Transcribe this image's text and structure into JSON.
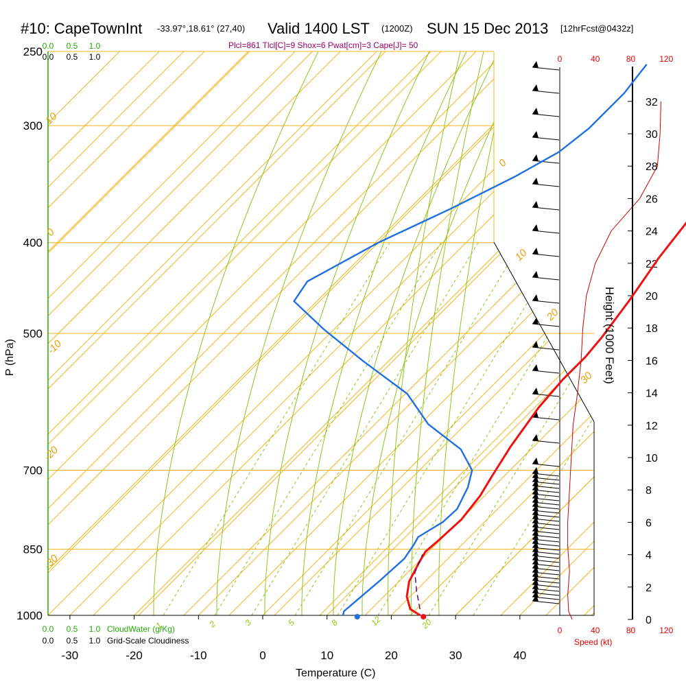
{
  "header": {
    "station": "#10: CapeTownInt",
    "coords": "-33.97°,18.61° (27,40)",
    "valid": "Valid 1400 LST",
    "zulu": "(1200Z)",
    "date": "SUN 15 Dec 2013",
    "forecast": "[12hrFcst@0432z]",
    "params": "Plcl=861 Tlcl[C]=9 Shox=6 Pwat[cm]=3 Cape[J]= 50"
  },
  "chart_data": {
    "type": "line",
    "title": "#10: CapeTownInt",
    "xlabel": "Temperature (C)",
    "ylabel": "P (hPa)",
    "y2label": "Height (1000 Feet)",
    "xlim": [
      -35,
      50
    ],
    "ylim": [
      1000,
      250
    ],
    "x_ticks": [
      -30,
      -20,
      -10,
      0,
      10,
      20,
      30,
      40
    ],
    "p_ticks": [
      250,
      300,
      400,
      500,
      700,
      850,
      1000
    ],
    "height_ticks": [
      0,
      2,
      4,
      6,
      8,
      10,
      12,
      14,
      16,
      18,
      20,
      22,
      24,
      26,
      28,
      30,
      32
    ],
    "speed_ticks": [
      0,
      40,
      80,
      120
    ],
    "speed_label": "Speed (kt)",
    "cloud_ticks": [
      "0.0",
      "0.5",
      "1.0"
    ],
    "cloudwater_label": "CloudWater (g/Kg)",
    "cloudiness_label": "Grid-Scale Cloudiness",
    "isotherm_labels": [
      "0",
      "10",
      "20",
      "30",
      "-10",
      "-20",
      "-30"
    ],
    "mixing_ratio_labels": [
      "1",
      "2",
      "3",
      "5",
      "8",
      "12",
      "20"
    ],
    "surface_temperature": 25,
    "surface_dewpoint": 14.7,
    "series": [
      {
        "name": "Temperature",
        "color": "#ee1111",
        "points": [
          [
            24.5,
            1000
          ],
          [
            22,
            985
          ],
          [
            19.5,
            955
          ],
          [
            17.5,
            920
          ],
          [
            16,
            875
          ],
          [
            15.4,
            855
          ],
          [
            15.7,
            830
          ],
          [
            16,
            790
          ],
          [
            15.2,
            745
          ],
          [
            14,
            710
          ],
          [
            12.3,
            660
          ],
          [
            10.6,
            600
          ],
          [
            10,
            560
          ],
          [
            10,
            530
          ],
          [
            9.5,
            505
          ],
          [
            8,
            460
          ],
          [
            6,
            415
          ],
          [
            4.8,
            380
          ],
          [
            3,
            345
          ],
          [
            0.5,
            310
          ],
          [
            -3,
            280
          ],
          [
            -7,
            258
          ]
        ]
      },
      {
        "name": "Dewpoint",
        "color": "#1e6fe0",
        "points": [
          [
            12.5,
            1000
          ],
          [
            12,
            990
          ],
          [
            12.8,
            920
          ],
          [
            13.2,
            870
          ],
          [
            12.5,
            840
          ],
          [
            12,
            825
          ],
          [
            13.5,
            795
          ],
          [
            13.7,
            770
          ],
          [
            12,
            730
          ],
          [
            10,
            700
          ],
          [
            5,
            665
          ],
          [
            -4,
            625
          ],
          [
            -12,
            580
          ],
          [
            -24,
            535
          ],
          [
            -35,
            495
          ],
          [
            -44,
            462
          ],
          [
            -45,
            440
          ],
          [
            -40,
            400
          ],
          [
            -34,
            368
          ],
          [
            -29,
            340
          ],
          [
            -26,
            320
          ],
          [
            -25,
            302
          ],
          [
            -25,
            277
          ],
          [
            -26,
            258
          ]
        ]
      }
    ]
  }
}
